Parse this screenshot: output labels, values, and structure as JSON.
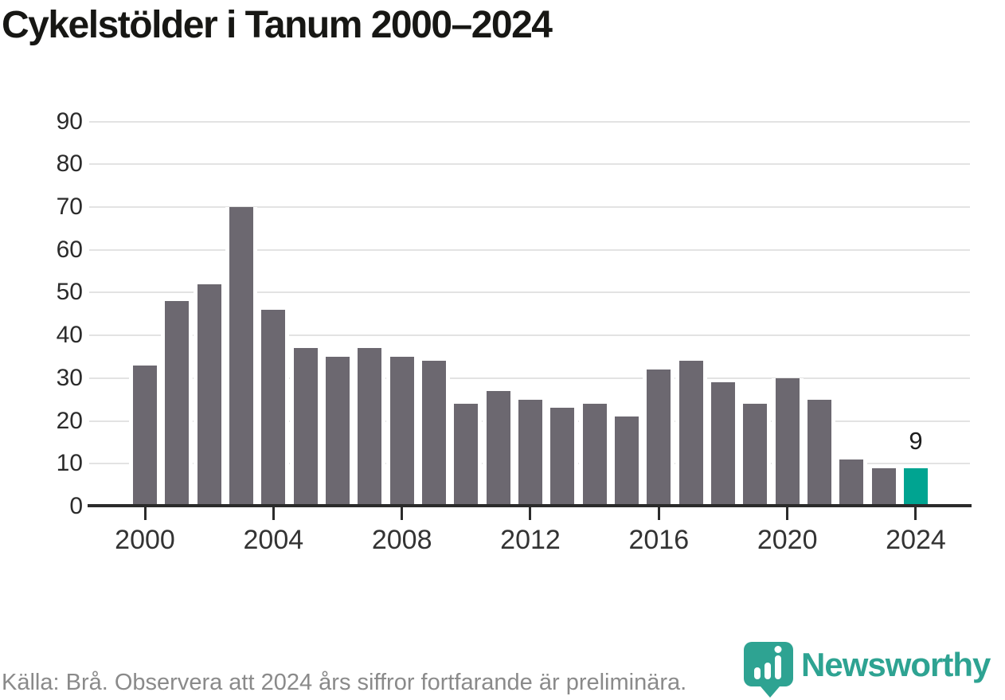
{
  "title": "Cykelstölder i Tanum 2000–2024",
  "chart_data": {
    "type": "bar",
    "title": "Cykelstölder i Tanum 2000–2024",
    "x": [
      2000,
      2001,
      2002,
      2003,
      2004,
      2005,
      2006,
      2007,
      2008,
      2009,
      2010,
      2011,
      2012,
      2013,
      2014,
      2015,
      2016,
      2017,
      2018,
      2019,
      2020,
      2021,
      2022,
      2023,
      2024
    ],
    "values": [
      33,
      48,
      52,
      70,
      46,
      37,
      35,
      37,
      35,
      34,
      24,
      27,
      25,
      23,
      24,
      21,
      32,
      34,
      29,
      24,
      30,
      25,
      11,
      9,
      9
    ],
    "bar_color": "#6c6870",
    "highlight_x": 2024,
    "highlight_color": "#00a491",
    "annotations": [
      {
        "x": 2024,
        "label": "9"
      }
    ],
    "ylim": [
      0,
      90
    ],
    "yticks": [
      0,
      10,
      20,
      30,
      40,
      50,
      60,
      70,
      80,
      90
    ],
    "xticks": [
      2000,
      2004,
      2008,
      2012,
      2016,
      2020,
      2024
    ],
    "grid": true,
    "legend": false
  },
  "footer": {
    "source_text": "Källa: Brå. Observera att 2024 års siffror fortfarande är preliminära."
  },
  "branding": {
    "logo_text": "Newsworthy",
    "logo_color": "#2ea392",
    "logo_icon": "newsworthy-bars-pin-icon"
  }
}
